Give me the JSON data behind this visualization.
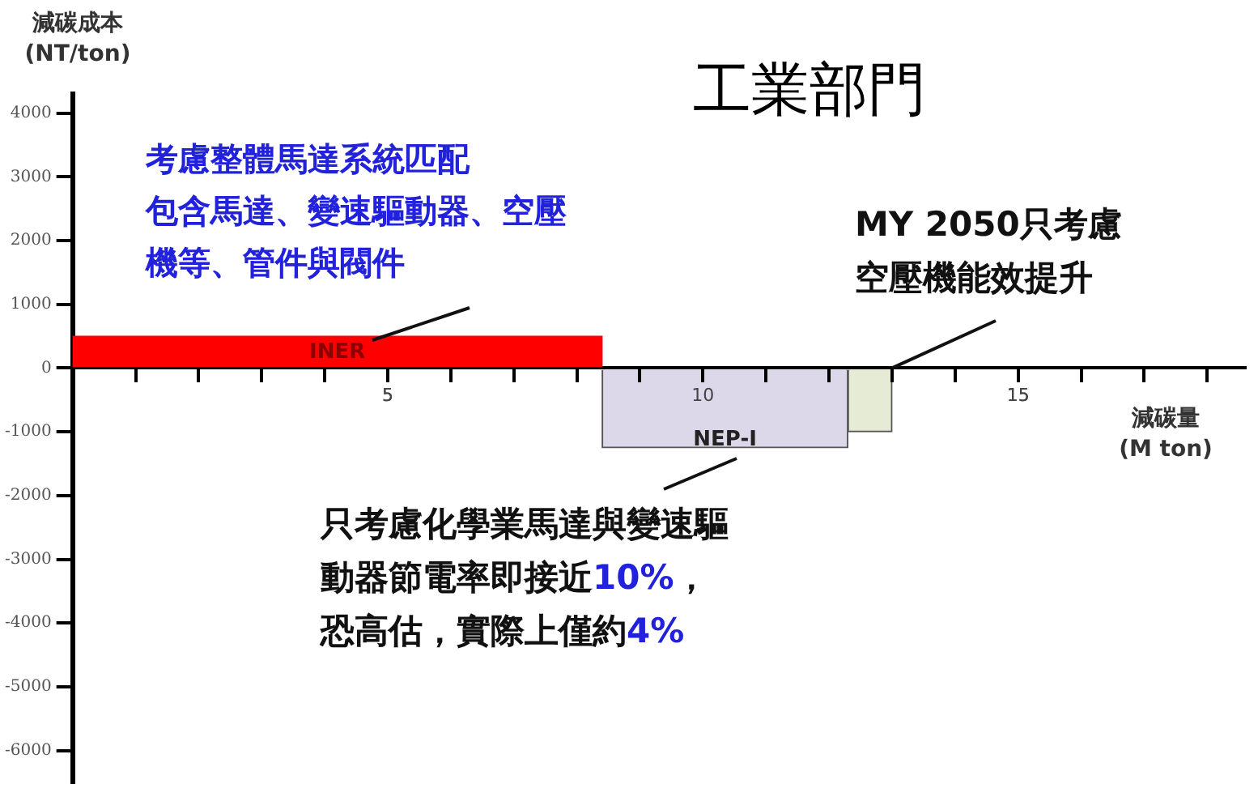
{
  "chart_data": {
    "type": "histogram",
    "title": "工業部門",
    "ylabel": "減碳成本\n(NT/ton)",
    "xlabel": "減碳量\n(M ton)",
    "bins": [
      0,
      8.4,
      12.3,
      13.0
    ],
    "values": [
      500,
      -1250,
      -1000
    ],
    "colors": [
      "#ff0000",
      "#dcd8ea",
      "#e6ebd5"
    ],
    "xlim": [
      0,
      18.6
    ],
    "ylim": [
      -6500,
      4300
    ],
    "xticks": [
      {
        "value": 1,
        "label": null
      },
      {
        "value": 2,
        "label": null
      },
      {
        "value": 3,
        "label": null
      },
      {
        "value": 4,
        "label": null
      },
      5,
      {
        "value": 6,
        "label": null
      },
      {
        "value": 7,
        "label": null
      },
      {
        "value": 8,
        "label": null
      },
      {
        "value": 9,
        "label": null
      },
      10,
      {
        "value": 11,
        "label": null
      },
      {
        "value": 12,
        "label": null
      },
      {
        "value": 13,
        "label": null
      },
      {
        "value": 14,
        "label": null
      },
      15,
      {
        "value": 16,
        "label": null
      },
      {
        "value": 17,
        "label": null
      },
      {
        "value": 18,
        "label": null
      }
    ],
    "yticks": [
      -6000,
      -5000,
      -4000,
      -3000,
      -2000,
      -1000,
      0,
      1000,
      2000,
      3000,
      4000
    ],
    "grid": false,
    "legend": false,
    "annotations": [
      "INER",
      "NEP-I",
      "考慮整體馬達系統匹配包含馬達、變速驅動器、空壓機等、管件與閥件",
      {
        "text": "MY 2050只考慮空壓機能效提升",
        "x": 13.0,
        "y": 0
      },
      "只考慮化學業馬達與變速驅動器節電率即接近10%，恐高估，實際上僅約4%"
    ]
  }
}
